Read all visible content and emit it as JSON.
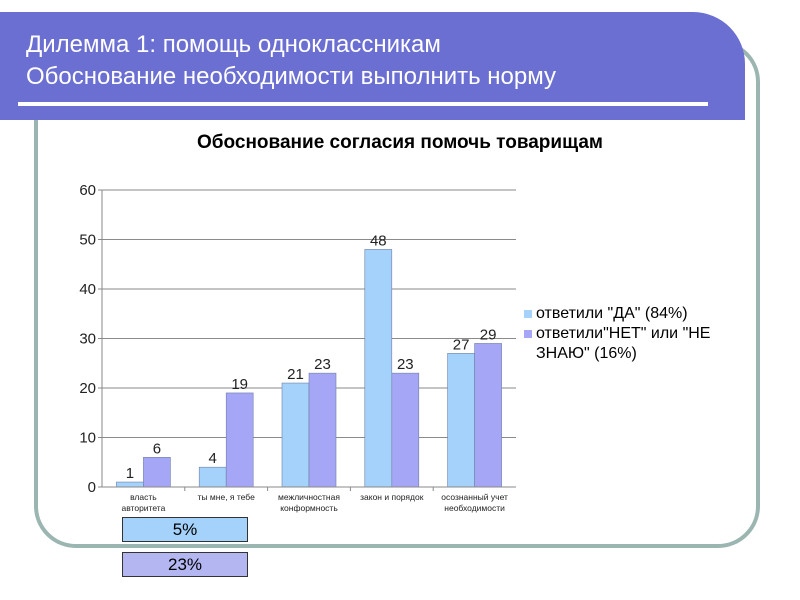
{
  "slide": {
    "title_line1": "Дилемма 1: помощь одноклассникам",
    "title_line2": "Обоснование необходимости выполнить норму"
  },
  "boxes": [
    {
      "text": "5%"
    },
    {
      "text": "23%"
    }
  ],
  "colors": {
    "banner": "#6b6fd2",
    "frame": "#9bb5b1",
    "series_yes": "#a4d2fb",
    "series_no": "#a5a6f6"
  },
  "chart_data": {
    "type": "bar",
    "title": "Обоснование согласия помочь товарищам",
    "categories": [
      [
        "власть",
        "авторитета"
      ],
      [
        "ты мне, я тебе"
      ],
      [
        "межличностная",
        "конформность"
      ],
      [
        "закон и порядок"
      ],
      [
        "осознанный учет",
        "необходимости"
      ]
    ],
    "series": [
      {
        "name": "ответили \"ДА\" (84%)",
        "values": [
          1,
          4,
          21,
          48,
          27
        ],
        "color": "#a4d2fb"
      },
      {
        "name": "ответили\"НЕТ\" или \"НЕ ЗНАЮ\" (16%)",
        "values": [
          6,
          19,
          23,
          23,
          29
        ],
        "color": "#a5a6f6"
      }
    ],
    "ylim": [
      0,
      60
    ],
    "yticks": [
      0,
      10,
      20,
      30,
      40,
      50,
      60
    ],
    "grid": true,
    "legend_position": "right",
    "data_labels": true
  }
}
